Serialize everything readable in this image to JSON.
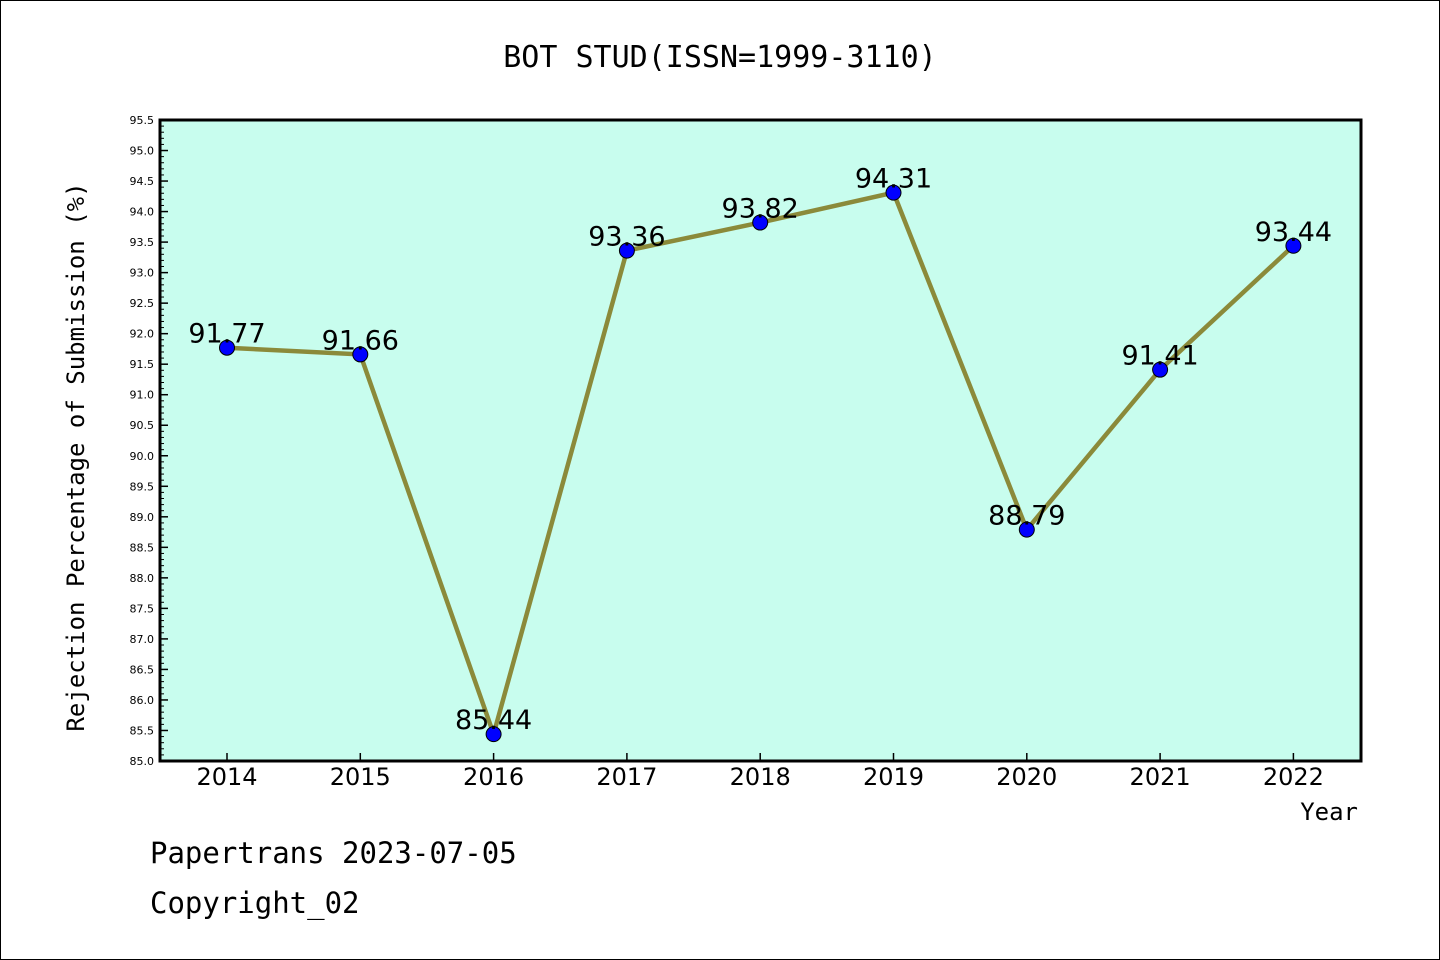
{
  "chart_data": {
    "type": "line",
    "title": "BOT STUD(ISSN=1999-3110)",
    "xlabel": "Year",
    "ylabel": "Rejection Percentage of Submission (%)",
    "categories": [
      "2014",
      "2015",
      "2016",
      "2017",
      "2018",
      "2019",
      "2020",
      "2021",
      "2022"
    ],
    "series": [
      {
        "values": [
          91.77,
          91.66,
          85.44,
          93.36,
          93.82,
          94.31,
          88.79,
          91.41,
          93.44
        ],
        "data_labels": [
          "91.77",
          "91.66",
          "85.44",
          "93.36",
          "93.82",
          "94.31",
          "88.79",
          "91.41",
          "93.44"
        ]
      }
    ],
    "ylim": [
      85.0,
      95.5
    ],
    "y_tick_labels": [
      "85.0",
      "85.5",
      "86.0",
      "86.5",
      "87.0",
      "87.5",
      "88.0",
      "88.5",
      "89.0",
      "89.5",
      "90.0",
      "90.5",
      "91.0",
      "91.5",
      "92.0",
      "92.5",
      "93.0",
      "93.5",
      "94.0",
      "94.5",
      "95.0",
      "95.5"
    ],
    "grid": false,
    "legend": "none",
    "colors": {
      "plot_background": "#c8fdee",
      "line": "#8b8a3a",
      "marker": "#0000ff",
      "axis": "#000000"
    }
  },
  "footer": {
    "line1": "Papertrans 2023-07-05",
    "line2": "Copyright_02"
  }
}
